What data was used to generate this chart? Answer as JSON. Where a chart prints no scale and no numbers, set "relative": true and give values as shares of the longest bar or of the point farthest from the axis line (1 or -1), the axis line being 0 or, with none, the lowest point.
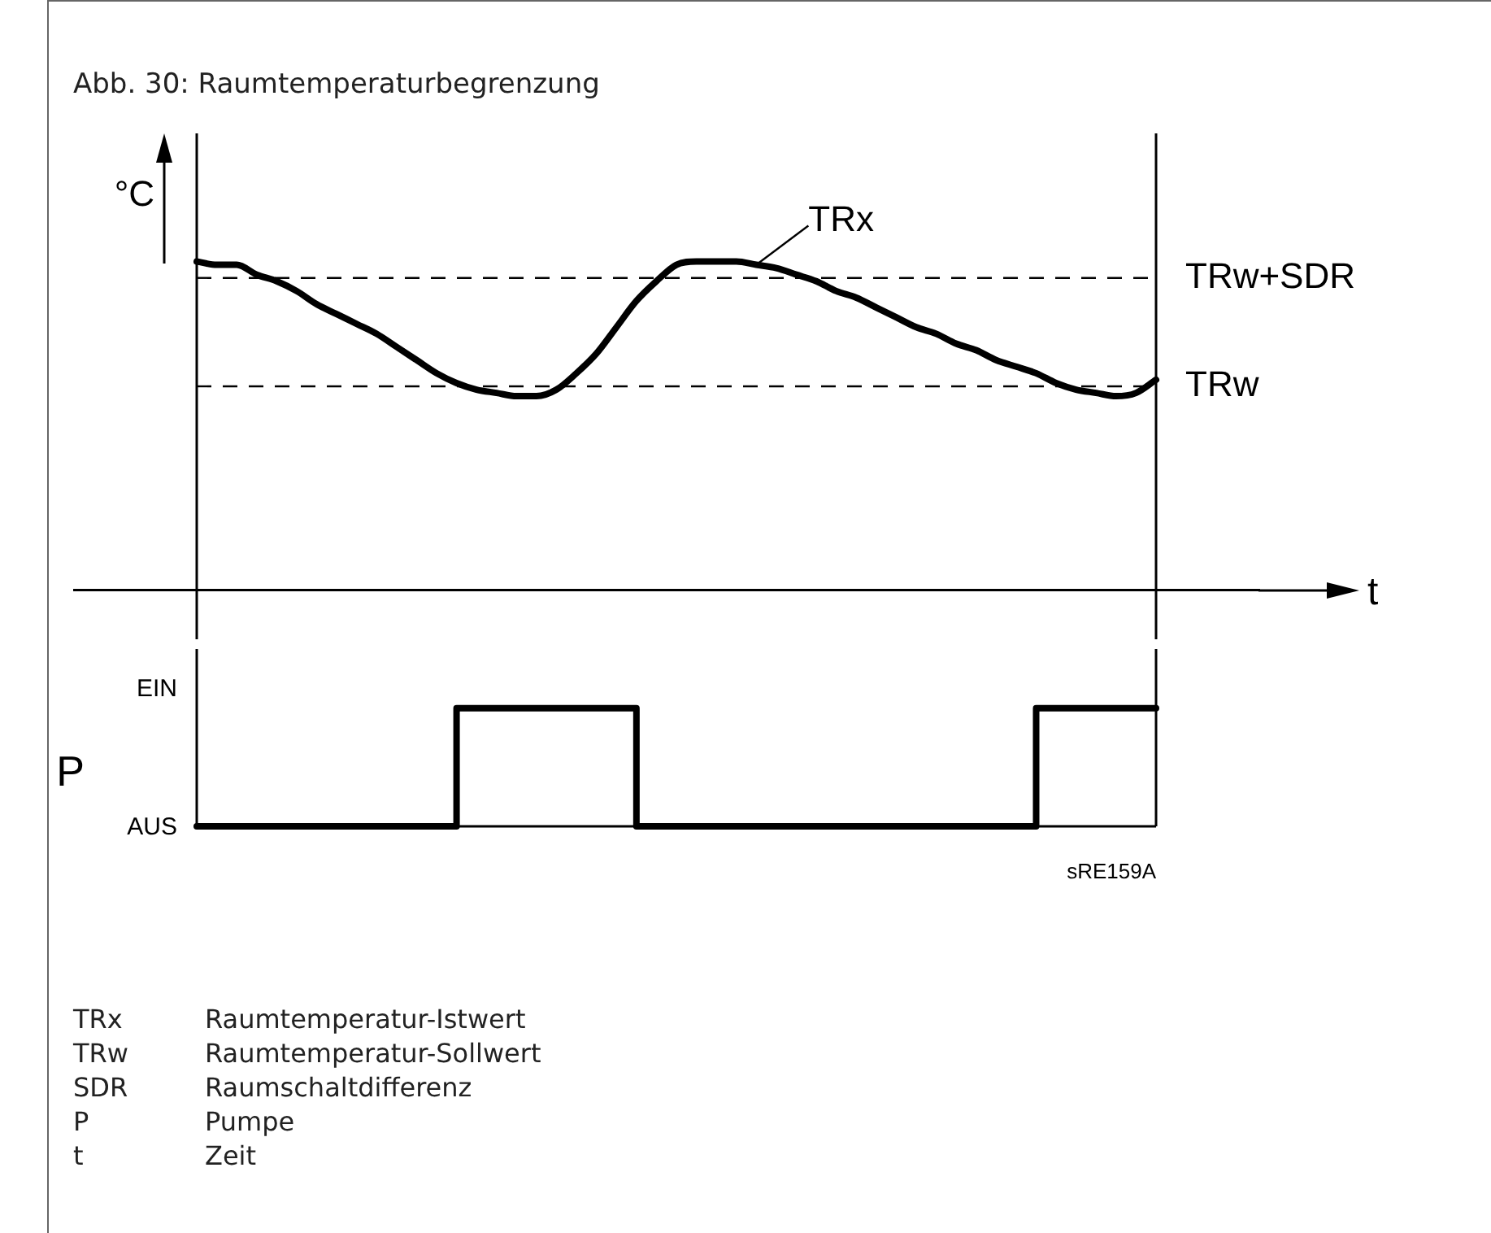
{
  "chart_data": [
    {
      "type": "line",
      "title": "Abb. 30: Raumtemperaturbegrenzung",
      "ylabel": "°C",
      "xlabel": "t",
      "relative": true,
      "legend": false,
      "categories": [
        null,
        null,
        null,
        null,
        null,
        null,
        null,
        null,
        null,
        null,
        null,
        null,
        null,
        null,
        null,
        null,
        null,
        null,
        null,
        null,
        null,
        null,
        null,
        null,
        null,
        null,
        null,
        null,
        null,
        null,
        null,
        null,
        null,
        null,
        null,
        null,
        null,
        null,
        null,
        null,
        null,
        null,
        null,
        null,
        null,
        null,
        null,
        null,
        null
      ],
      "series": [
        {
          "name": "TRx",
          "color": "#000000",
          "values": [
            1.0,
            0.99,
            0.99,
            0.96,
            0.94,
            0.91,
            0.87,
            0.84,
            0.81,
            0.78,
            0.74,
            0.7,
            0.66,
            0.63,
            0.61,
            0.6,
            0.59,
            0.59,
            0.61,
            0.66,
            0.72,
            0.8,
            0.88,
            0.94,
            0.99,
            1.0,
            1.0,
            1.0,
            0.99,
            0.98,
            0.96,
            0.94,
            0.91,
            0.89,
            0.86,
            0.83,
            0.8,
            0.78,
            0.75,
            0.73,
            0.7,
            0.68,
            0.66,
            0.63,
            0.61,
            0.6,
            0.59,
            0.6,
            0.64
          ]
        }
      ],
      "ref_lines": [
        {
          "axis": "y",
          "value": 0.95,
          "label": "TRw+SDR",
          "line_style": "dashed"
        },
        {
          "axis": "y",
          "value": 0.62,
          "label": "TRw",
          "line_style": "dashed"
        }
      ]
    },
    {
      "type": "step",
      "ylabel": "P",
      "legend": false,
      "relative": true,
      "categories": [
        null,
        null,
        null,
        null,
        null,
        null,
        null,
        null,
        null,
        null,
        null,
        null,
        null,
        null,
        null,
        null,
        null,
        null,
        null,
        null,
        null,
        null,
        null,
        null,
        null,
        null,
        null,
        null,
        null,
        null,
        null,
        null,
        null,
        null,
        null,
        null,
        null,
        null,
        null,
        null,
        null,
        null,
        null,
        null,
        null,
        null,
        null,
        null,
        null
      ],
      "series": [
        {
          "color": "#000000",
          "values": [
            0,
            0,
            0,
            0,
            0,
            0,
            0,
            0,
            0,
            0,
            0,
            0,
            0,
            0,
            1,
            1,
            1,
            1,
            1,
            1,
            1,
            1,
            1,
            0,
            0,
            0,
            0,
            0,
            0,
            0,
            0,
            0,
            0,
            0,
            0,
            0,
            0,
            0,
            0,
            0,
            0,
            0,
            0,
            1,
            1,
            1,
            1,
            1,
            1
          ]
        }
      ],
      "annotations": [
        "EIN",
        "AUS",
        "sRE159A",
        "TRx\tRaumtemperatur-Istwert",
        "TRw\tRaumtemperatur-Sollwert",
        "SDR\tRaumschaltdifferenz",
        "P\tPumpe",
        "t\tZeit"
      ]
    }
  ]
}
